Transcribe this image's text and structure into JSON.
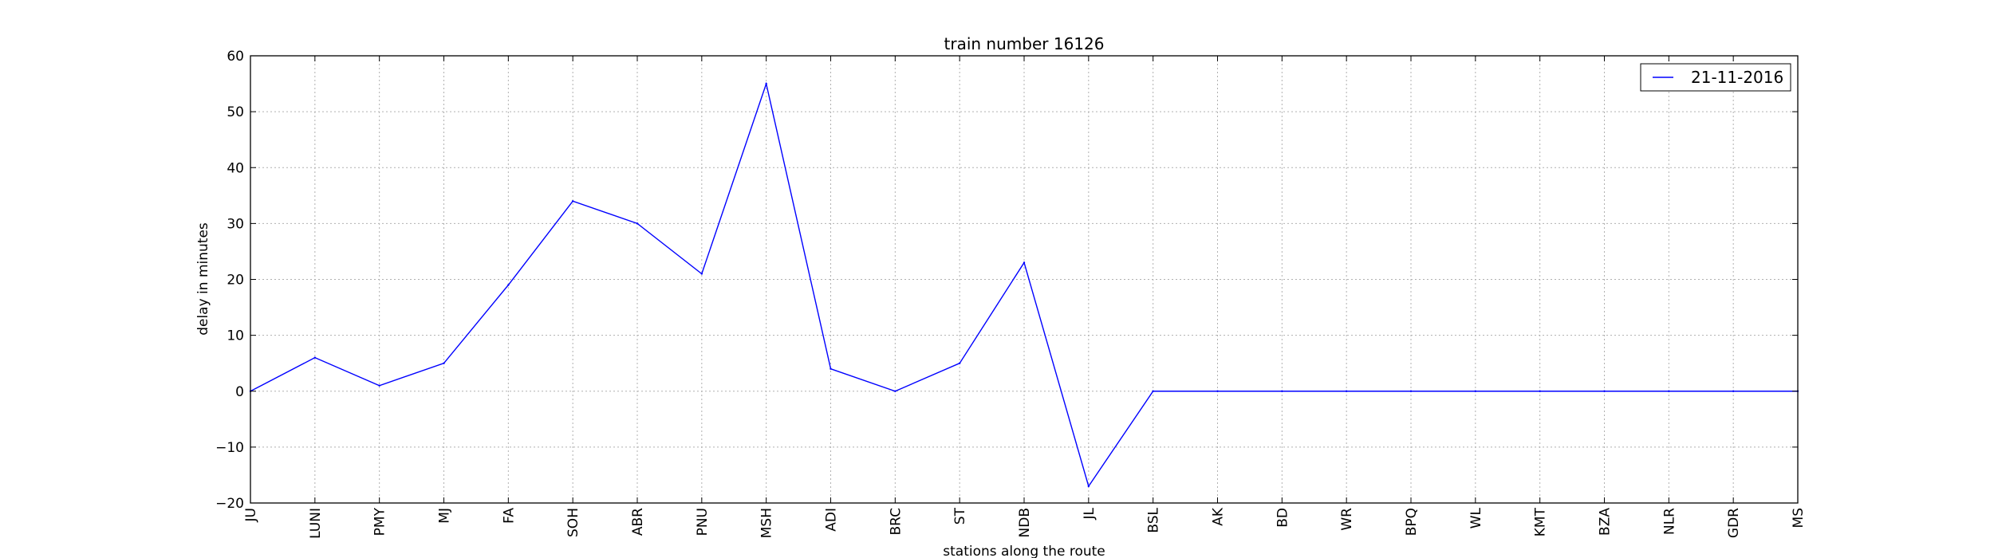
{
  "chart_data": {
    "type": "line",
    "title": "train number 16126",
    "xlabel": "stations along the route",
    "ylabel": "delay in minutes",
    "categories": [
      "JU",
      "LUNI",
      "PMY",
      "MJ",
      "FA",
      "SOH",
      "ABR",
      "PNU",
      "MSH",
      "ADI",
      "BRC",
      "ST",
      "NDB",
      "JL",
      "BSL",
      "AK",
      "BD",
      "WR",
      "BPQ",
      "WL",
      "KMT",
      "BZA",
      "NLR",
      "GDR",
      "MS"
    ],
    "series": [
      {
        "name": "21-11-2016",
        "color": "#0000ff",
        "values": [
          0,
          6,
          1,
          5,
          19,
          34,
          30,
          21,
          55,
          4,
          0,
          5,
          23,
          -17,
          0,
          0,
          0,
          0,
          0,
          0,
          0,
          0,
          0,
          0,
          0
        ]
      }
    ],
    "ylim": [
      -20,
      60
    ],
    "yticks": [
      -20,
      -10,
      0,
      10,
      20,
      30,
      40,
      50,
      60
    ],
    "ytick_labels": [
      "−20",
      "−10",
      "0",
      "10",
      "20",
      "30",
      "40",
      "50",
      "60"
    ],
    "grid": true,
    "legend_position": "top-right"
  }
}
